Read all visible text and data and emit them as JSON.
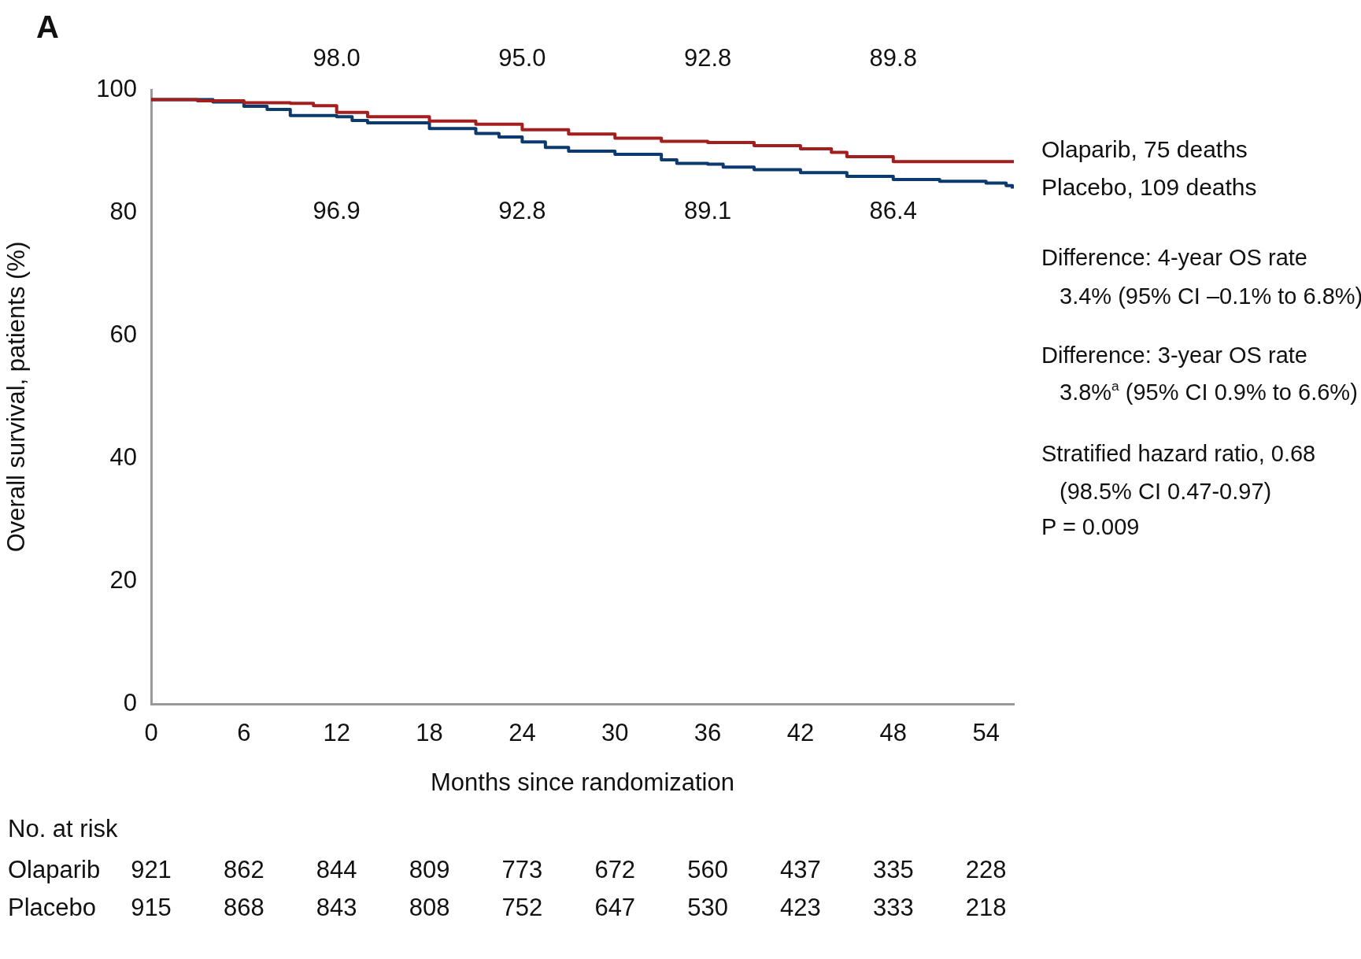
{
  "chart_data": {
    "type": "step",
    "title": "A",
    "xlabel": "Months since randomization",
    "ylabel": "Overall survival, patients (%)",
    "xlim": [
      0,
      55.8
    ],
    "xticks": [
      0,
      6,
      12,
      18,
      24,
      30,
      36,
      42,
      48,
      54
    ],
    "ylim": [
      0,
      100
    ],
    "yticks": [
      0,
      20,
      40,
      60,
      80,
      100
    ],
    "grid": false,
    "legend": "right",
    "series": [
      {
        "name": "Olaparib, 75 deaths",
        "color": "#a31e1e",
        "x": [
          0,
          3,
          6,
          9,
          10.5,
          12,
          14,
          18,
          21,
          24,
          27,
          30,
          33,
          36,
          39,
          42,
          44,
          45,
          48,
          55.8
        ],
        "values": [
          98.4,
          98.2,
          97.9,
          97.8,
          97.4,
          96.3,
          95.6,
          94.9,
          94.4,
          93.5,
          92.8,
          92.1,
          91.6,
          91.4,
          90.9,
          90.4,
          89.8,
          89.1,
          88.3,
          88.3
        ]
      },
      {
        "name": "Placebo, 109 deaths",
        "color": "#0d3a6e",
        "x": [
          0,
          3,
          4,
          6,
          7.5,
          9,
          12,
          13,
          14,
          18,
          21,
          22.5,
          24,
          25.5,
          27,
          30,
          33,
          34,
          36,
          37,
          39,
          42,
          45,
          48,
          51,
          54,
          55.3,
          55.7
        ],
        "values": [
          98.4,
          98.4,
          98.0,
          97.3,
          96.8,
          95.8,
          95.6,
          95.0,
          94.6,
          93.7,
          92.9,
          92.3,
          91.5,
          90.6,
          90.0,
          89.5,
          88.6,
          88.0,
          87.9,
          87.4,
          87.0,
          86.5,
          85.9,
          85.4,
          85.1,
          84.8,
          84.4,
          83.9
        ]
      }
    ],
    "annotations": [
      "98.0",
      "95.0",
      "92.8",
      "89.8",
      "96.9",
      "92.8",
      "89.1",
      "86.4",
      "Difference: 4-year OS rate",
      "3.4% (95% CI –0.1% to 6.8%)",
      "Difference: 3-year OS rate",
      "3.8%$^{a}$ (95% CI 0.9% to 6.6%)",
      "Stratified hazard ratio, 0.68",
      "(98.5% CI 0.47-0.97)",
      "P = 0.009",
      "No. at risk",
      "Olaparib",
      "921",
      "862",
      "844",
      "809",
      "773",
      "672",
      "560",
      "437",
      "335",
      "228",
      "Placebo",
      "915",
      "868",
      "843",
      "808",
      "752",
      "647",
      "530",
      "423",
      "333",
      "218"
    ]
  }
}
